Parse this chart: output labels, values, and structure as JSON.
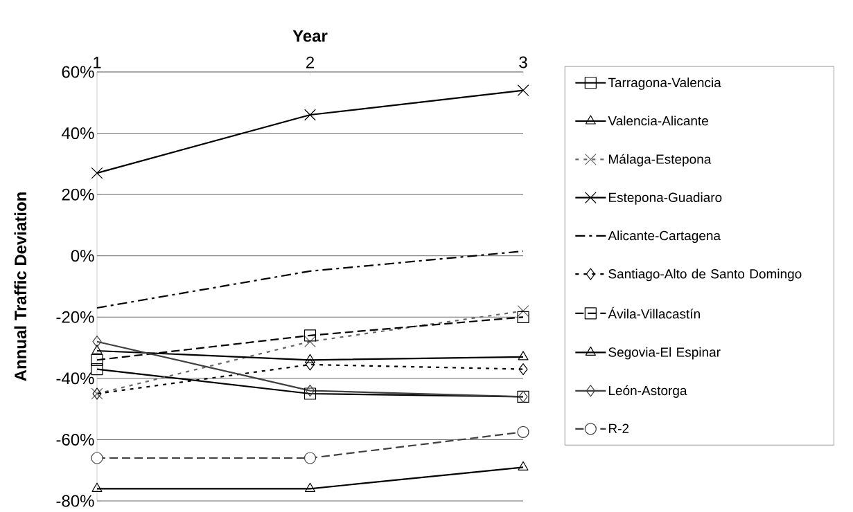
{
  "chart_data": {
    "type": "line",
    "xlabel": "Year",
    "ylabel": "Annual Traffic Deviation",
    "x": [
      1,
      2,
      3
    ],
    "xlim": [
      1,
      3
    ],
    "xticks": [
      1,
      2,
      3
    ],
    "ylim": [
      -80,
      60
    ],
    "yticks": [
      {
        "value": -80,
        "label": "-80%"
      },
      {
        "value": -60,
        "label": "-60%"
      },
      {
        "value": -40,
        "label": "-40%"
      },
      {
        "value": -20,
        "label": "-20%"
      },
      {
        "value": 0,
        "label": "0%"
      },
      {
        "value": 20,
        "label": "20%"
      },
      {
        "value": 40,
        "label": "40%"
      },
      {
        "value": 60,
        "label": "60%"
      }
    ],
    "grid": "y",
    "legend": "right",
    "series": [
      {
        "name": "Tarragona-Valencia",
        "color": "#000000",
        "values": [
          -37,
          -45,
          -46
        ],
        "marker": "square",
        "line_style": "solid"
      },
      {
        "name": "Valencia-Alicante",
        "color": "#000000",
        "values": [
          -76,
          -76,
          -69
        ],
        "marker": "triangle",
        "line_style": "solid"
      },
      {
        "name": "Málaga-Estepona",
        "color": "#666666",
        "values": [
          -45,
          -28,
          -18
        ],
        "marker": "cross",
        "line_style": "dotted"
      },
      {
        "name": "Estepona-Guadiaro",
        "color": "#000000",
        "values": [
          27,
          46,
          54
        ],
        "marker": "cross",
        "line_style": "solid"
      },
      {
        "name": "Alicante-Cartagena",
        "color": "#000000",
        "values": [
          -17,
          -5,
          1.5
        ],
        "marker": "none",
        "line_style": "dashdot"
      },
      {
        "name": "Santiago-Alto de Santo Domingo",
        "color": "#000000",
        "values": [
          -45,
          -35.5,
          -37
        ],
        "marker": "diamond",
        "line_style": "dotted"
      },
      {
        "name": "Ávila-Villacastín",
        "color": "#000000",
        "values": [
          -34,
          -26,
          -20
        ],
        "marker": "square",
        "line_style": "dashed"
      },
      {
        "name": "Segovia-El Espinar",
        "color": "#000000",
        "values": [
          -31,
          -34,
          -33
        ],
        "marker": "triangle",
        "line_style": "solid"
      },
      {
        "name": "León-Astorga",
        "color": "#404040",
        "values": [
          -28,
          -44,
          -46
        ],
        "marker": "diamond",
        "line_style": "solid"
      },
      {
        "name": "R-2",
        "color": "#404040",
        "values": [
          -66,
          -66,
          -57.5
        ],
        "marker": "circle",
        "line_style": "dashed"
      }
    ]
  }
}
